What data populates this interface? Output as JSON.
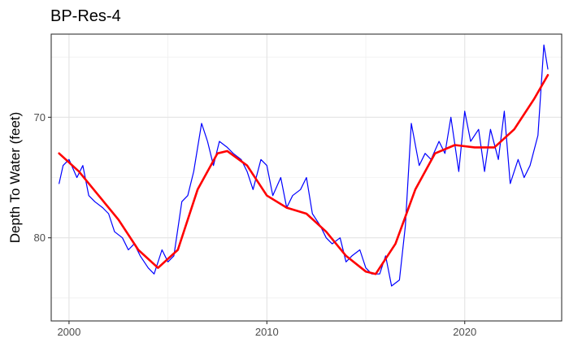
{
  "chart_data": {
    "type": "line",
    "title": "BP-Res-4",
    "xlabel": "",
    "ylabel": "Depth To Water (feet)",
    "x_ticks": [
      2000,
      2010,
      2020
    ],
    "y_ticks": [
      70,
      80
    ],
    "y_reversed": true,
    "grid": true,
    "legend": "none",
    "xlim": [
      1999.1,
      2024.9
    ],
    "ylim": [
      63.1,
      86.9
    ],
    "series": [
      {
        "color": "#0000ff",
        "style": "observed",
        "x": [
          1999.5,
          1999.7,
          2000.0,
          2000.4,
          2000.7,
          2001.0,
          2001.3,
          2001.7,
          2002.0,
          2002.3,
          2002.7,
          2003.0,
          2003.3,
          2003.6,
          2004.0,
          2004.3,
          2004.7,
          2005.0,
          2005.3,
          2005.7,
          2006.0,
          2006.3,
          2006.7,
          2007.0,
          2007.3,
          2007.6,
          2008.0,
          2008.3,
          2008.7,
          2009.0,
          2009.3,
          2009.7,
          2010.0,
          2010.3,
          2010.7,
          2011.0,
          2011.3,
          2011.7,
          2012.0,
          2012.3,
          2012.7,
          2013.0,
          2013.3,
          2013.7,
          2014.0,
          2014.3,
          2014.7,
          2015.0,
          2015.3,
          2015.7,
          2016.0,
          2016.3,
          2016.7,
          2017.0,
          2017.3,
          2017.7,
          2018.0,
          2018.3,
          2018.7,
          2019.0,
          2019.3,
          2019.7,
          2020.0,
          2020.3,
          2020.7,
          2021.0,
          2021.3,
          2021.7,
          2022.0,
          2022.3,
          2022.7,
          2023.0,
          2023.3,
          2023.7,
          2024.0,
          2024.2
        ],
        "y": [
          75.5,
          74.0,
          73.5,
          75.0,
          74.0,
          76.5,
          77.0,
          77.5,
          78.0,
          79.5,
          80.0,
          81.0,
          80.5,
          81.5,
          82.5,
          83.0,
          81.0,
          82.0,
          81.5,
          77.0,
          76.5,
          74.5,
          70.5,
          72.0,
          74.0,
          72.0,
          72.5,
          73.0,
          73.5,
          74.5,
          76.0,
          73.5,
          74.0,
          76.5,
          75.0,
          77.5,
          76.5,
          76.0,
          75.0,
          78.0,
          79.0,
          80.0,
          80.5,
          80.0,
          82.0,
          81.5,
          81.0,
          82.5,
          83.0,
          83.0,
          81.5,
          84.0,
          83.5,
          79.0,
          70.5,
          74.0,
          73.0,
          73.5,
          72.0,
          73.0,
          70.0,
          74.5,
          69.5,
          72.0,
          71.0,
          74.5,
          71.0,
          73.5,
          69.5,
          75.5,
          73.5,
          75.0,
          74.0,
          71.5,
          64.0,
          66.0
        ]
      },
      {
        "color": "#ff0000",
        "style": "smooth",
        "x": [
          1999.5,
          2000.5,
          2001.5,
          2002.5,
          2003.5,
          2004.5,
          2005.5,
          2006.5,
          2007.5,
          2008.0,
          2009.0,
          2010.0,
          2011.0,
          2012.0,
          2013.0,
          2014.0,
          2015.0,
          2015.5,
          2016.5,
          2017.5,
          2018.5,
          2019.5,
          2020.5,
          2021.5,
          2022.5,
          2023.5,
          2024.2
        ],
        "y": [
          73.0,
          74.5,
          76.5,
          78.5,
          81.0,
          82.5,
          81.0,
          76.0,
          73.0,
          72.8,
          74.0,
          76.5,
          77.5,
          78.0,
          79.5,
          81.5,
          82.8,
          83.0,
          80.5,
          76.0,
          73.0,
          72.3,
          72.5,
          72.5,
          71.0,
          68.5,
          66.5
        ]
      }
    ]
  }
}
